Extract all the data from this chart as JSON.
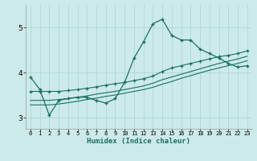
{
  "xlabel": "Humidex (Indice chaleur)",
  "background_color": "#cceaea",
  "grid_color": "#aad4d4",
  "line_color": "#1a7060",
  "xlim": [
    -0.5,
    23.5
  ],
  "ylim": [
    2.75,
    5.5
  ],
  "xticks": [
    0,
    1,
    2,
    3,
    4,
    5,
    6,
    7,
    8,
    9,
    10,
    11,
    12,
    13,
    14,
    15,
    16,
    17,
    18,
    19,
    20,
    21,
    22,
    23
  ],
  "yticks": [
    3,
    4,
    5
  ],
  "line1_x": [
    0,
    1,
    2,
    3,
    4,
    5,
    6,
    7,
    8,
    9,
    10,
    11,
    12,
    13,
    14,
    15,
    16,
    17,
    18,
    19,
    20,
    21,
    22,
    23
  ],
  "line1_y": [
    3.9,
    3.62,
    3.05,
    3.38,
    3.42,
    3.45,
    3.45,
    3.38,
    3.32,
    3.42,
    3.78,
    4.32,
    4.68,
    5.08,
    5.18,
    4.82,
    4.72,
    4.72,
    4.52,
    4.42,
    4.32,
    4.2,
    4.12,
    4.15
  ],
  "line2_x": [
    0,
    1,
    2,
    3,
    4,
    5,
    6,
    7,
    8,
    9,
    10,
    11,
    12,
    13,
    14,
    15,
    16,
    17,
    18,
    19,
    20,
    21,
    22,
    23
  ],
  "line2_y": [
    3.58,
    3.58,
    3.58,
    3.58,
    3.6,
    3.62,
    3.65,
    3.68,
    3.72,
    3.75,
    3.78,
    3.82,
    3.86,
    3.92,
    4.02,
    4.1,
    4.15,
    4.2,
    4.25,
    4.3,
    4.35,
    4.38,
    4.42,
    4.48
  ],
  "line3_x": [
    0,
    1,
    2,
    3,
    4,
    5,
    6,
    7,
    8,
    9,
    10,
    11,
    12,
    13,
    14,
    15,
    16,
    17,
    18,
    19,
    20,
    21,
    22,
    23
  ],
  "line3_y": [
    3.38,
    3.38,
    3.38,
    3.4,
    3.42,
    3.45,
    3.48,
    3.52,
    3.55,
    3.58,
    3.62,
    3.66,
    3.7,
    3.76,
    3.84,
    3.9,
    3.96,
    4.02,
    4.08,
    4.14,
    4.2,
    4.25,
    4.3,
    4.36
  ],
  "line4_x": [
    0,
    1,
    2,
    3,
    4,
    5,
    6,
    7,
    8,
    9,
    10,
    11,
    12,
    13,
    14,
    15,
    16,
    17,
    18,
    19,
    20,
    21,
    22,
    23
  ],
  "line4_y": [
    3.28,
    3.28,
    3.28,
    3.3,
    3.33,
    3.36,
    3.4,
    3.43,
    3.47,
    3.5,
    3.54,
    3.58,
    3.62,
    3.67,
    3.74,
    3.8,
    3.87,
    3.93,
    3.99,
    4.05,
    4.1,
    4.15,
    4.2,
    4.26
  ]
}
